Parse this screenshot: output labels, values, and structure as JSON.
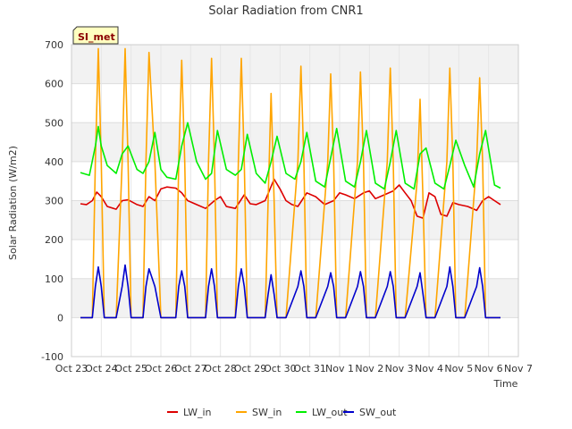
{
  "chart_data": {
    "type": "line",
    "title": "Solar Radiation from CNR1",
    "xlabel": "Time",
    "ylabel": "Solar Radiation (W/m2)",
    "site_badge": "SI_met",
    "xlim": [
      0,
      15
    ],
    "ylim": [
      -100,
      700
    ],
    "yticks": [
      -100,
      0,
      100,
      200,
      300,
      400,
      500,
      600,
      700
    ],
    "xticks": [
      {
        "value": 0,
        "label": "Oct 23"
      },
      {
        "value": 1,
        "label": "Oct 24"
      },
      {
        "value": 2,
        "label": "Oct 25"
      },
      {
        "value": 3,
        "label": "Oct 26"
      },
      {
        "value": 4,
        "label": "Oct 27"
      },
      {
        "value": 5,
        "label": "Oct 28"
      },
      {
        "value": 6,
        "label": "Oct 29"
      },
      {
        "value": 7,
        "label": "Oct 30"
      },
      {
        "value": 8,
        "label": "Oct 31"
      },
      {
        "value": 9,
        "label": "Nov 1"
      },
      {
        "value": 10,
        "label": "Nov 2"
      },
      {
        "value": 11,
        "label": "Nov 3"
      },
      {
        "value": 12,
        "label": "Nov 4"
      },
      {
        "value": 13,
        "label": "Nov 5"
      },
      {
        "value": 14,
        "label": "Nov 6"
      },
      {
        "value": 15,
        "label": "Nov 7"
      }
    ],
    "grid": true,
    "legend_position": "bottom-center",
    "series": [
      {
        "name": "LW_in",
        "color": "#dd0000",
        "x": [
          0.3,
          0.5,
          0.7,
          0.85,
          1.0,
          1.2,
          1.5,
          1.7,
          1.9,
          2.2,
          2.4,
          2.6,
          2.8,
          3.0,
          3.2,
          3.5,
          3.7,
          3.9,
          4.2,
          4.5,
          4.8,
          5.0,
          5.2,
          5.5,
          5.8,
          6.0,
          6.2,
          6.5,
          6.8,
          7.0,
          7.2,
          7.4,
          7.6,
          7.9,
          8.2,
          8.5,
          8.8,
          9.0,
          9.2,
          9.5,
          9.8,
          10.0,
          10.2,
          10.5,
          10.8,
          11.0,
          11.2,
          11.4,
          11.6,
          11.8,
          12.0,
          12.2,
          12.4,
          12.6,
          12.8,
          13.0,
          13.3,
          13.6,
          13.8,
          14.0,
          14.2,
          14.4
        ],
        "y": [
          292,
          290,
          300,
          322,
          310,
          285,
          278,
          300,
          302,
          290,
          285,
          310,
          300,
          330,
          335,
          332,
          320,
          300,
          290,
          280,
          300,
          310,
          285,
          280,
          315,
          292,
          290,
          300,
          355,
          330,
          300,
          290,
          285,
          320,
          310,
          290,
          300,
          320,
          315,
          305,
          320,
          325,
          305,
          315,
          325,
          340,
          320,
          300,
          260,
          255,
          320,
          310,
          265,
          260,
          295,
          290,
          285,
          275,
          300,
          310,
          300,
          290
        ]
      },
      {
        "name": "SW_in",
        "color": "#ffa500",
        "x": [
          0.3,
          0.5,
          0.7,
          0.8,
          0.9,
          1.0,
          1.1,
          1.2,
          1.3,
          1.5,
          1.7,
          1.8,
          1.9,
          2.0,
          2.2,
          2.4,
          2.5,
          2.6,
          2.8,
          3.0,
          3.2,
          3.5,
          3.6,
          3.7,
          3.8,
          3.9,
          4.0,
          4.2,
          4.5,
          4.6,
          4.7,
          4.8,
          4.9,
          5.0,
          5.2,
          5.5,
          5.6,
          5.7,
          5.8,
          5.9,
          6.0,
          6.2,
          6.5,
          6.6,
          6.7,
          6.8,
          6.9,
          7.0,
          7.2,
          7.6,
          7.7,
          7.8,
          7.9,
          8.0,
          8.2,
          8.6,
          8.7,
          8.8,
          8.9,
          9.0,
          9.2,
          9.6,
          9.7,
          9.8,
          9.9,
          10.0,
          10.2,
          10.6,
          10.7,
          10.8,
          10.9,
          11.0,
          11.2,
          11.6,
          11.7,
          11.8,
          11.9,
          12.0,
          12.2,
          12.6,
          12.7,
          12.8,
          12.9,
          13.0,
          13.2,
          13.6,
          13.7,
          13.8,
          13.9,
          14.0,
          14.2,
          14.4
        ],
        "y": [
          0,
          0,
          0,
          400,
          690,
          400,
          0,
          0,
          0,
          0,
          400,
          690,
          400,
          0,
          0,
          0,
          400,
          680,
          400,
          0,
          0,
          0,
          400,
          660,
          400,
          0,
          0,
          0,
          0,
          400,
          665,
          400,
          0,
          0,
          0,
          0,
          400,
          665,
          400,
          0,
          0,
          0,
          0,
          300,
          575,
          300,
          0,
          0,
          0,
          400,
          645,
          400,
          0,
          0,
          0,
          400,
          625,
          400,
          0,
          0,
          0,
          400,
          630,
          400,
          0,
          0,
          0,
          400,
          640,
          400,
          0,
          0,
          0,
          350,
          560,
          300,
          0,
          0,
          0,
          400,
          640,
          400,
          0,
          0,
          0,
          400,
          615,
          400,
          0,
          0,
          0,
          0
        ]
      },
      {
        "name": "LW_out",
        "color": "#00ee00",
        "x": [
          0.3,
          0.6,
          0.8,
          0.9,
          1.0,
          1.2,
          1.5,
          1.7,
          1.9,
          2.2,
          2.4,
          2.6,
          2.8,
          3.0,
          3.2,
          3.5,
          3.7,
          3.9,
          4.2,
          4.5,
          4.7,
          4.9,
          5.2,
          5.5,
          5.7,
          5.9,
          6.2,
          6.5,
          6.7,
          6.9,
          7.2,
          7.5,
          7.7,
          7.9,
          8.2,
          8.5,
          8.7,
          8.9,
          9.2,
          9.5,
          9.7,
          9.9,
          10.2,
          10.5,
          10.7,
          10.9,
          11.2,
          11.5,
          11.7,
          11.9,
          12.2,
          12.5,
          12.7,
          12.9,
          13.2,
          13.5,
          13.7,
          13.9,
          14.2,
          14.4
        ],
        "y": [
          372,
          365,
          440,
          490,
          440,
          390,
          370,
          420,
          440,
          380,
          370,
          400,
          475,
          380,
          360,
          355,
          440,
          500,
          400,
          355,
          370,
          480,
          380,
          365,
          380,
          470,
          370,
          345,
          400,
          465,
          370,
          355,
          400,
          475,
          350,
          335,
          410,
          485,
          350,
          335,
          400,
          480,
          345,
          330,
          400,
          480,
          345,
          330,
          420,
          435,
          345,
          330,
          390,
          455,
          390,
          335,
          420,
          480,
          340,
          332
        ]
      },
      {
        "name": "SW_out",
        "color": "#0000cc",
        "x": [
          0.3,
          0.5,
          0.7,
          0.8,
          0.9,
          1.0,
          1.1,
          1.2,
          1.3,
          1.5,
          1.7,
          1.8,
          1.9,
          2.0,
          2.2,
          2.4,
          2.5,
          2.6,
          2.8,
          3.0,
          3.2,
          3.5,
          3.6,
          3.7,
          3.8,
          3.9,
          4.0,
          4.2,
          4.5,
          4.6,
          4.7,
          4.8,
          4.9,
          5.0,
          5.2,
          5.5,
          5.6,
          5.7,
          5.8,
          5.9,
          6.0,
          6.2,
          6.5,
          6.6,
          6.7,
          6.8,
          6.9,
          7.0,
          7.2,
          7.6,
          7.7,
          7.8,
          7.9,
          8.0,
          8.2,
          8.6,
          8.7,
          8.8,
          8.9,
          9.0,
          9.2,
          9.6,
          9.7,
          9.8,
          9.9,
          10.0,
          10.2,
          10.6,
          10.7,
          10.8,
          10.9,
          11.0,
          11.2,
          11.6,
          11.7,
          11.8,
          11.9,
          12.0,
          12.2,
          12.6,
          12.7,
          12.8,
          12.9,
          13.0,
          13.2,
          13.6,
          13.7,
          13.8,
          13.9,
          14.0,
          14.2,
          14.4
        ],
        "y": [
          0,
          0,
          0,
          80,
          130,
          80,
          0,
          0,
          0,
          0,
          80,
          135,
          80,
          0,
          0,
          0,
          80,
          125,
          80,
          0,
          0,
          0,
          80,
          120,
          80,
          0,
          0,
          0,
          0,
          80,
          125,
          80,
          0,
          0,
          0,
          0,
          80,
          125,
          80,
          0,
          0,
          0,
          0,
          60,
          110,
          60,
          0,
          0,
          0,
          80,
          120,
          80,
          0,
          0,
          0,
          80,
          115,
          80,
          0,
          0,
          0,
          80,
          118,
          80,
          0,
          0,
          0,
          80,
          118,
          80,
          0,
          0,
          0,
          80,
          115,
          60,
          0,
          0,
          0,
          80,
          130,
          80,
          0,
          0,
          0,
          80,
          128,
          80,
          0,
          0,
          0,
          0
        ]
      }
    ]
  }
}
